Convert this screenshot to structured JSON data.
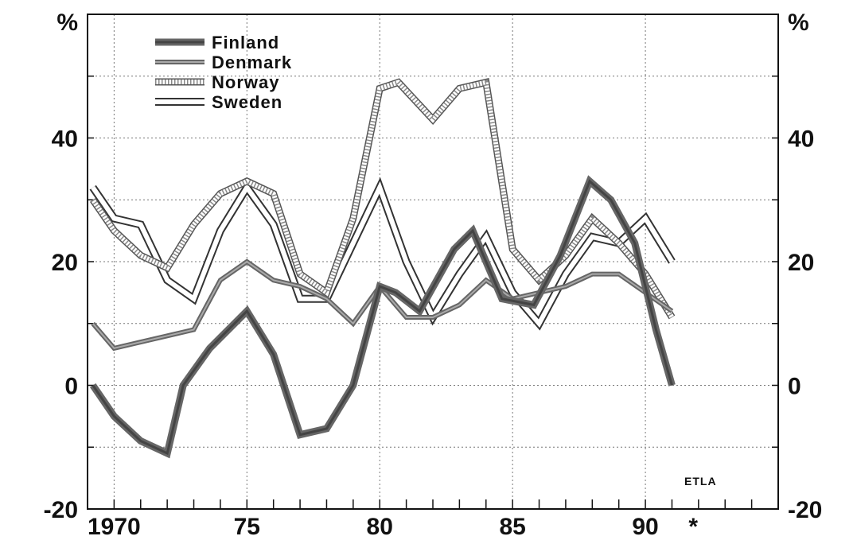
{
  "chart_data": {
    "type": "line",
    "title": "",
    "xlabel": "",
    "ylabel": "",
    "y_unit_left": "%",
    "y_unit_right": "%",
    "xlim": [
      1969,
      1995
    ],
    "ylim": [
      -20,
      60
    ],
    "x_ticks": [
      {
        "value": 1970,
        "label": "1970"
      },
      {
        "value": 1975,
        "label": "75"
      },
      {
        "value": 1980,
        "label": "80"
      },
      {
        "value": 1985,
        "label": "85"
      },
      {
        "value": 1990,
        "label": "90"
      },
      {
        "value": 1991.8,
        "label": "*"
      }
    ],
    "y_ticks": [
      {
        "value": -20,
        "label": "-20"
      },
      {
        "value": 0,
        "label": "0"
      },
      {
        "value": 20,
        "label": "20"
      },
      {
        "value": 40,
        "label": "40"
      }
    ],
    "grid": true,
    "legend_position": "top-left",
    "source_label": "ETLA",
    "series": [
      {
        "name": "Finland",
        "style": "thick-dark",
        "color": "#555555",
        "x": [
          1969.2,
          1970,
          1971,
          1972,
          1972.6,
          1973.6,
          1975,
          1976,
          1977,
          1978,
          1979,
          1980,
          1980.6,
          1981.5,
          1982.8,
          1983.5,
          1984.6,
          1985.8,
          1986.8,
          1987.9,
          1988.7,
          1989.6,
          1990.4,
          1991
        ],
        "y": [
          0,
          -5,
          -9,
          -11,
          0,
          6,
          12,
          5,
          -8,
          -7,
          0,
          16,
          15,
          12,
          22,
          25,
          14,
          13,
          21,
          33,
          30,
          23,
          9,
          0
        ]
      },
      {
        "name": "Denmark",
        "style": "double-line",
        "color": "#555555",
        "x": [
          1969.2,
          1970,
          1971,
          1972,
          1973,
          1974,
          1975,
          1976,
          1977,
          1978,
          1979,
          1980,
          1981,
          1982,
          1983,
          1984,
          1985,
          1986,
          1987,
          1988,
          1989,
          1990,
          1991
        ],
        "y": [
          10,
          6,
          7,
          8,
          9,
          17,
          20,
          17,
          16,
          14,
          10,
          16,
          11,
          11,
          13,
          17,
          14,
          15,
          16,
          18,
          18,
          15,
          12
        ]
      },
      {
        "name": "Norway",
        "style": "hatched",
        "color": "#777777",
        "x": [
          1969.2,
          1970,
          1971,
          1972,
          1973,
          1974,
          1975,
          1976,
          1977,
          1978,
          1979,
          1980,
          1980.7,
          1982,
          1983,
          1984,
          1985,
          1986,
          1987,
          1988,
          1989,
          1990,
          1991
        ],
        "y": [
          30,
          25,
          21,
          19,
          26,
          31,
          33,
          31,
          18,
          15,
          27,
          48,
          49,
          43,
          48,
          49,
          22,
          17,
          21,
          27,
          23,
          18,
          11
        ]
      },
      {
        "name": "Sweden",
        "style": "outline",
        "color": "#444444",
        "x": [
          1969.2,
          1970,
          1971,
          1972,
          1973,
          1974,
          1975,
          1976,
          1977,
          1978,
          1979,
          1980,
          1981,
          1982,
          1983,
          1984,
          1985,
          1986,
          1987,
          1988,
          1989,
          1990,
          1991
        ],
        "y": [
          32,
          27,
          26,
          17,
          14,
          25,
          32,
          26,
          14,
          14,
          23,
          32,
          20,
          11,
          18,
          24,
          15,
          10,
          18,
          24,
          23,
          27,
          20
        ]
      }
    ]
  }
}
